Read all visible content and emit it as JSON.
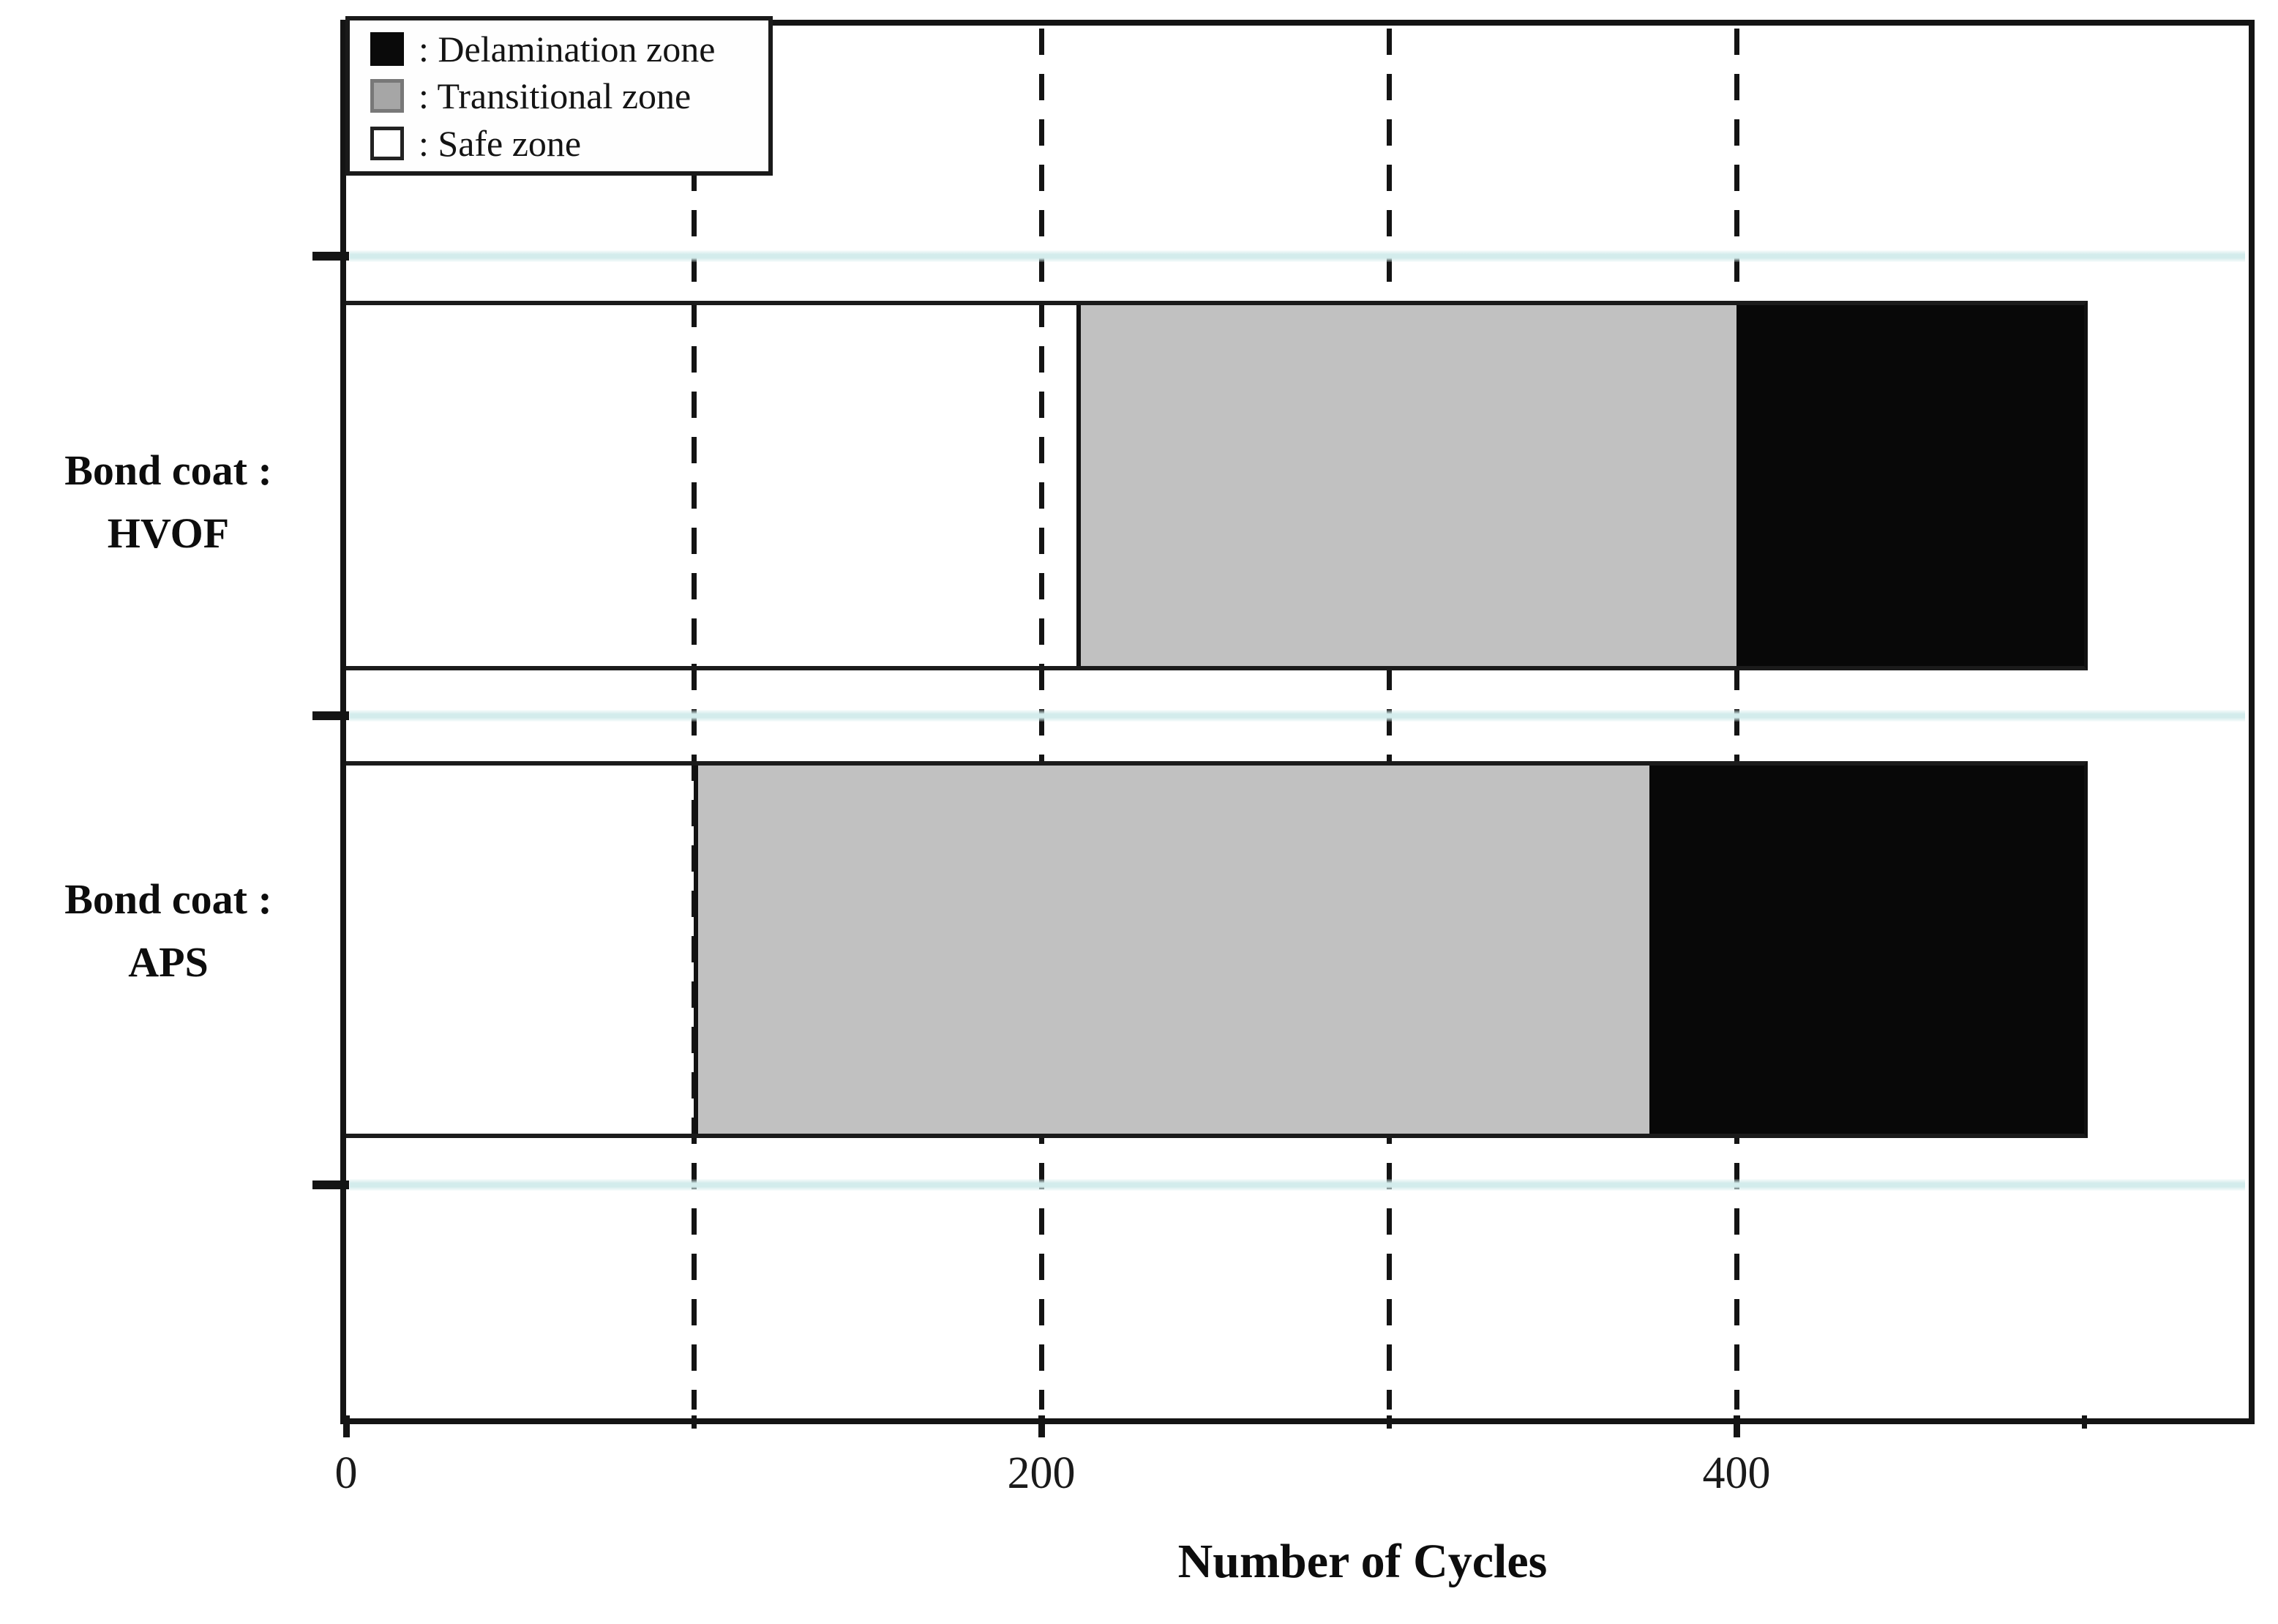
{
  "figure": {
    "background": "#ffffff"
  },
  "legend": {
    "items": [
      {
        "label": ": Delamination zone",
        "zone": "delamination",
        "swatch_fill": "#0a0a0a",
        "swatch_border": "#0a0a0a"
      },
      {
        "label": ": Transitional zone",
        "zone": "transitional",
        "swatch_fill": "#a6a6a6",
        "swatch_border": "#787878"
      },
      {
        "label": ": Safe zone",
        "zone": "safe",
        "swatch_fill": "#ffffff",
        "swatch_border": "#222222"
      }
    ]
  },
  "y_axis": {
    "categories": [
      {
        "line1": "Bond coat :",
        "line2": "HVOF"
      },
      {
        "line1": "Bond coat :",
        "line2": "APS"
      }
    ]
  },
  "x_axis": {
    "title": "Number of Cycles",
    "tick_labels": [
      "0",
      "200",
      "400"
    ],
    "major_ticks": [
      0,
      200,
      400
    ],
    "minor_ticks": [
      100,
      300,
      500
    ],
    "max": 547
  },
  "chart_data": {
    "type": "bar",
    "orientation": "horizontal-stacked",
    "title": "",
    "xlabel": "Number of Cycles",
    "ylabel": "",
    "xlim": [
      0,
      547
    ],
    "gridlines_x": [
      100,
      200,
      300,
      400
    ],
    "grid_style": "dashed-vertical-black",
    "categories": [
      "Bond coat : HVOF",
      "Bond coat : APS"
    ],
    "series": [
      {
        "name": "Safe zone",
        "color": "#ffffff",
        "values": [
          210,
          100
        ]
      },
      {
        "name": "Transitional zone",
        "color": "#c1c1c1",
        "values": [
          190,
          275
        ]
      },
      {
        "name": "Delamination zone",
        "color": "#080808",
        "values": [
          100,
          125
        ]
      }
    ],
    "totals": [
      500,
      500
    ],
    "legend_position": "upper-left"
  },
  "colors": {
    "gridline": "#141414",
    "category_separator_line": "#d3ecec",
    "transitional_gray": "#c1c1c1",
    "delamination_black": "#080808",
    "safe_white": "#ffffff"
  }
}
